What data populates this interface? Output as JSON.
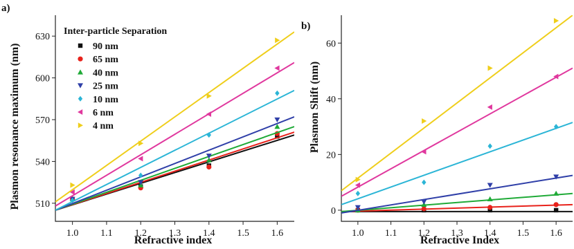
{
  "chart_data": [
    {
      "panel_label": "a)",
      "type": "scatter",
      "fit_lines": true,
      "xlabel": "Refractive index",
      "ylabel": "Plasmon resonance maximum (nm)",
      "xlim": [
        0.95,
        1.65
      ],
      "ylim": [
        497,
        645
      ],
      "x_ticks": [
        1.0,
        1.1,
        1.2,
        1.3,
        1.4,
        1.5,
        1.6
      ],
      "x_tick_labels": [
        "1.0",
        "1.1",
        "1.2",
        "1.3",
        "1.4",
        "1.5",
        "1.6"
      ],
      "y_ticks": [
        510,
        540,
        570,
        600,
        630
      ],
      "y_tick_labels": [
        "510",
        "540",
        "570",
        "600",
        "630"
      ],
      "legend_title": "Inter-particle Separation",
      "legend_position": "top-left",
      "series": [
        {
          "name": "90 nm",
          "color": "#111111",
          "marker": "square",
          "x": [
            1.0,
            1.2,
            1.4,
            1.6
          ],
          "y": [
            513,
            522,
            537,
            558
          ],
          "fit": [
            [
              0.95,
              505
            ],
            [
              1.65,
              559
            ]
          ]
        },
        {
          "name": "65 nm",
          "color": "#e8221b",
          "marker": "circle",
          "x": [
            1.0,
            1.2,
            1.4,
            1.6
          ],
          "y": [
            513,
            521,
            536,
            560
          ],
          "fit": [
            [
              0.95,
              505
            ],
            [
              1.65,
              561
            ]
          ]
        },
        {
          "name": "40 nm",
          "color": "#1faa37",
          "marker": "triangle-up",
          "x": [
            1.0,
            1.2,
            1.4,
            1.6
          ],
          "y": [
            513,
            523,
            541,
            565
          ],
          "fit": [
            [
              0.95,
              505
            ],
            [
              1.65,
              565
            ]
          ]
        },
        {
          "name": "25 nm",
          "color": "#2f3fa8",
          "marker": "triangle-down",
          "x": [
            1.0,
            1.2,
            1.4,
            1.6
          ],
          "y": [
            513,
            525,
            544,
            570
          ],
          "fit": [
            [
              0.95,
              505
            ],
            [
              1.65,
              572
            ]
          ]
        },
        {
          "name": "10 nm",
          "color": "#2bb5d6",
          "marker": "diamond",
          "x": [
            1.0,
            1.2,
            1.4,
            1.6
          ],
          "y": [
            512,
            530,
            559,
            589
          ],
          "fit": [
            [
              0.95,
              505
            ],
            [
              1.65,
              591
            ]
          ]
        },
        {
          "name": "6 nm",
          "color": "#e0389e",
          "marker": "triangle-left",
          "x": [
            1.0,
            1.2,
            1.4,
            1.6
          ],
          "y": [
            518,
            542,
            574,
            607
          ],
          "fit": [
            [
              0.95,
              508
            ],
            [
              1.65,
              611
            ]
          ]
        },
        {
          "name": "4 nm",
          "color": "#efce1b",
          "marker": "triangle-right",
          "x": [
            1.0,
            1.2,
            1.4,
            1.6
          ],
          "y": [
            523,
            553,
            587,
            627
          ],
          "fit": [
            [
              0.95,
              511
            ],
            [
              1.65,
              633
            ]
          ]
        }
      ]
    },
    {
      "panel_label": "b)",
      "type": "scatter",
      "fit_lines": true,
      "xlabel": "Refractive Index",
      "ylabel": "Plasmon Shift (nm)",
      "xlim": [
        0.95,
        1.65
      ],
      "ylim": [
        -4,
        70
      ],
      "x_ticks": [
        1.0,
        1.1,
        1.2,
        1.3,
        1.4,
        1.5,
        1.6
      ],
      "x_tick_labels": [
        "1.0",
        "1.1",
        "1.2",
        "1.3",
        "1.4",
        "1.5",
        "1.6"
      ],
      "y_ticks": [
        0,
        20,
        40,
        60
      ],
      "y_tick_labels": [
        "0",
        "20",
        "40",
        "60"
      ],
      "series": [
        {
          "name": "90 nm",
          "color": "#111111",
          "marker": "square",
          "x": [
            1.0,
            1.2,
            1.4,
            1.6
          ],
          "y": [
            0,
            0,
            0,
            0
          ],
          "fit": [
            [
              0.95,
              -0.5
            ],
            [
              1.65,
              -0.5
            ]
          ]
        },
        {
          "name": "65 nm",
          "color": "#e8221b",
          "marker": "circle",
          "x": [
            1.0,
            1.2,
            1.4,
            1.6
          ],
          "y": [
            0,
            0.5,
            1,
            2
          ],
          "fit": [
            [
              0.95,
              -0.5
            ],
            [
              1.65,
              2
            ]
          ]
        },
        {
          "name": "40 nm",
          "color": "#1faa37",
          "marker": "triangle-up",
          "x": [
            1.0,
            1.2,
            1.4,
            1.6
          ],
          "y": [
            0,
            2,
            4,
            6
          ],
          "fit": [
            [
              0.95,
              -0.5
            ],
            [
              1.65,
              6
            ]
          ]
        },
        {
          "name": "25 nm",
          "color": "#2f3fa8",
          "marker": "triangle-down",
          "x": [
            1.0,
            1.2,
            1.4,
            1.6
          ],
          "y": [
            1,
            3,
            9,
            12
          ],
          "fit": [
            [
              0.95,
              -1
            ],
            [
              1.65,
              12.5
            ]
          ]
        },
        {
          "name": "10 nm",
          "color": "#2bb5d6",
          "marker": "diamond",
          "x": [
            1.0,
            1.2,
            1.4,
            1.6
          ],
          "y": [
            6,
            10,
            23,
            30
          ],
          "fit": [
            [
              0.95,
              2
            ],
            [
              1.65,
              31.5
            ]
          ]
        },
        {
          "name": "6 nm",
          "color": "#e0389e",
          "marker": "triangle-left",
          "x": [
            1.0,
            1.2,
            1.4,
            1.6
          ],
          "y": [
            9,
            21,
            37,
            48
          ],
          "fit": [
            [
              0.95,
              5
            ],
            [
              1.65,
              51
            ]
          ]
        },
        {
          "name": "4 nm",
          "color": "#efce1b",
          "marker": "triangle-right",
          "x": [
            1.0,
            1.2,
            1.4,
            1.6
          ],
          "y": [
            11,
            32,
            51,
            68
          ],
          "fit": [
            [
              0.95,
              7
            ],
            [
              1.65,
              70
            ]
          ]
        }
      ]
    }
  ]
}
